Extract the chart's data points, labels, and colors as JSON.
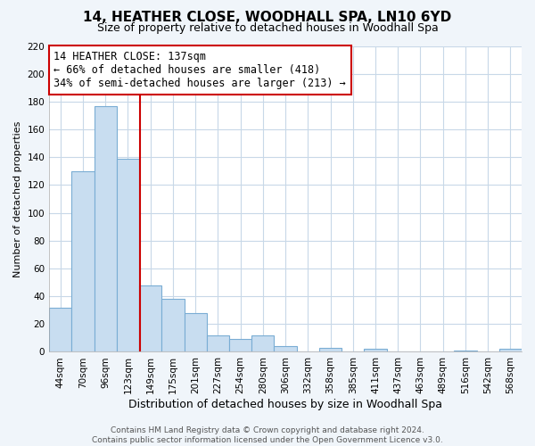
{
  "title": "14, HEATHER CLOSE, WOODHALL SPA, LN10 6YD",
  "subtitle": "Size of property relative to detached houses in Woodhall Spa",
  "xlabel": "Distribution of detached houses by size in Woodhall Spa",
  "ylabel": "Number of detached properties",
  "bar_labels": [
    "44sqm",
    "70sqm",
    "96sqm",
    "123sqm",
    "149sqm",
    "175sqm",
    "201sqm",
    "227sqm",
    "254sqm",
    "280sqm",
    "306sqm",
    "332sqm",
    "358sqm",
    "385sqm",
    "411sqm",
    "437sqm",
    "463sqm",
    "489sqm",
    "516sqm",
    "542sqm",
    "568sqm"
  ],
  "bar_values": [
    32,
    130,
    177,
    139,
    48,
    38,
    28,
    12,
    9,
    12,
    4,
    0,
    3,
    0,
    2,
    0,
    0,
    0,
    1,
    0,
    2
  ],
  "bar_fill_color": "#c8ddf0",
  "bar_edge_color": "#7aadd4",
  "vline_color": "#cc0000",
  "annotation_text": "14 HEATHER CLOSE: 137sqm\n← 66% of detached houses are smaller (418)\n34% of semi-detached houses are larger (213) →",
  "annotation_box_facecolor": "white",
  "annotation_box_edgecolor": "#cc0000",
  "ylim": [
    0,
    220
  ],
  "yticks": [
    0,
    20,
    40,
    60,
    80,
    100,
    120,
    140,
    160,
    180,
    200,
    220
  ],
  "grid_color": "#c8d8e8",
  "plot_bg_color": "#ffffff",
  "fig_bg_color": "#f0f5fa",
  "footer_text": "Contains HM Land Registry data © Crown copyright and database right 2024.\nContains public sector information licensed under the Open Government Licence v3.0.",
  "title_fontsize": 11,
  "subtitle_fontsize": 9,
  "xlabel_fontsize": 9,
  "ylabel_fontsize": 8,
  "tick_fontsize": 7.5,
  "annotation_fontsize": 8.5,
  "footer_fontsize": 6.5,
  "vline_pos": 3.538
}
